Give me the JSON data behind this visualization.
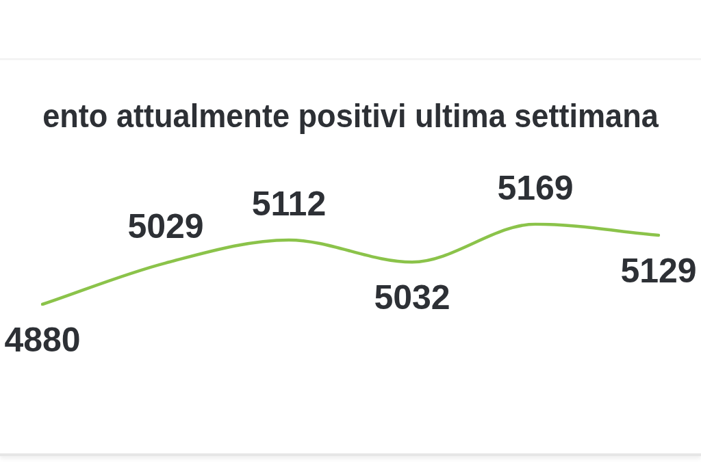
{
  "chart_data": {
    "type": "line",
    "title": "ento attualmente positivi ultima settimana",
    "categories": [
      null,
      null,
      null,
      null,
      null,
      null
    ],
    "series": [
      {
        "color": "#8bc34a",
        "values": [
          4880,
          5029,
          5112,
          5032,
          5169,
          5129
        ]
      }
    ],
    "data_labels": true,
    "tick_labels": false,
    "marker": "none"
  }
}
